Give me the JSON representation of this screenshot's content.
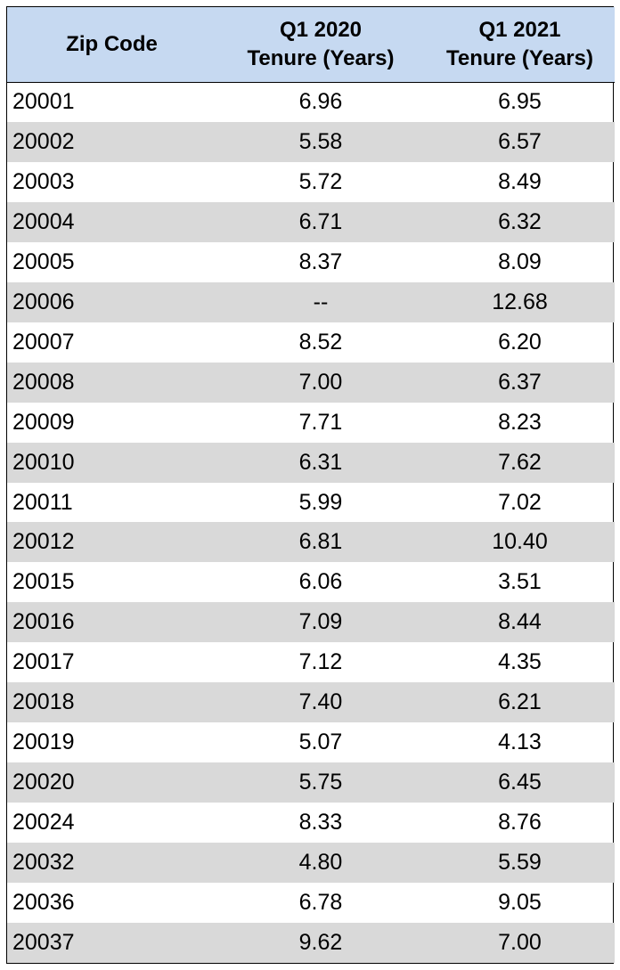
{
  "table": {
    "headers": {
      "zip": "Zip Code",
      "q1_2020_line1": "Q1 2020",
      "q1_2020_line2": "Tenure (Years)",
      "q1_2021_line1": "Q1 2021",
      "q1_2021_line2": "Tenure (Years)"
    },
    "rows": [
      {
        "zip": "20001",
        "q1_2020": "6.96",
        "q1_2021": "6.95"
      },
      {
        "zip": "20002",
        "q1_2020": "5.58",
        "q1_2021": "6.57"
      },
      {
        "zip": "20003",
        "q1_2020": "5.72",
        "q1_2021": "8.49"
      },
      {
        "zip": "20004",
        "q1_2020": "6.71",
        "q1_2021": "6.32"
      },
      {
        "zip": "20005",
        "q1_2020": "8.37",
        "q1_2021": "8.09"
      },
      {
        "zip": "20006",
        "q1_2020": "--",
        "q1_2021": "12.68"
      },
      {
        "zip": "20007",
        "q1_2020": "8.52",
        "q1_2021": "6.20"
      },
      {
        "zip": "20008",
        "q1_2020": "7.00",
        "q1_2021": "6.37"
      },
      {
        "zip": "20009",
        "q1_2020": "7.71",
        "q1_2021": "8.23"
      },
      {
        "zip": "20010",
        "q1_2020": "6.31",
        "q1_2021": "7.62"
      },
      {
        "zip": "20011",
        "q1_2020": "5.99",
        "q1_2021": "7.02"
      },
      {
        "zip": "20012",
        "q1_2020": "6.81",
        "q1_2021": "10.40"
      },
      {
        "zip": "20015",
        "q1_2020": "6.06",
        "q1_2021": "3.51"
      },
      {
        "zip": "20016",
        "q1_2020": "7.09",
        "q1_2021": "8.44"
      },
      {
        "zip": "20017",
        "q1_2020": "7.12",
        "q1_2021": "4.35"
      },
      {
        "zip": "20018",
        "q1_2020": "7.40",
        "q1_2021": "6.21"
      },
      {
        "zip": "20019",
        "q1_2020": "5.07",
        "q1_2021": "4.13"
      },
      {
        "zip": "20020",
        "q1_2020": "5.75",
        "q1_2021": "6.45"
      },
      {
        "zip": "20024",
        "q1_2020": "8.33",
        "q1_2021": "8.76"
      },
      {
        "zip": "20032",
        "q1_2020": "4.80",
        "q1_2021": "5.59"
      },
      {
        "zip": "20036",
        "q1_2020": "6.78",
        "q1_2021": "9.05"
      },
      {
        "zip": "20037",
        "q1_2020": "9.62",
        "q1_2021": "7.00"
      }
    ]
  },
  "colors": {
    "header_bg": "#c6d9f1",
    "band_bg": "#d9d9d9",
    "border": "#000000"
  }
}
